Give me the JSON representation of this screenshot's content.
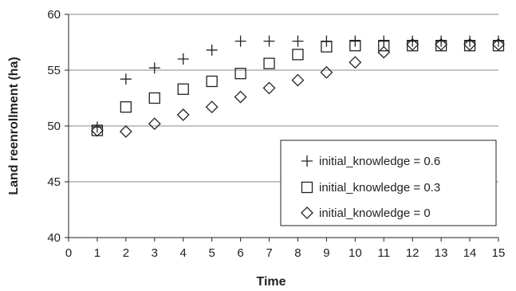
{
  "chart_data": {
    "type": "scatter",
    "xlabel": "Time",
    "ylabel": "Land reenrollment (ha)",
    "xlim": [
      0,
      15
    ],
    "ylim": [
      40,
      60
    ],
    "x_ticks": [
      "0",
      "1",
      "2",
      "3",
      "4",
      "5",
      "6",
      "7",
      "8",
      "9",
      "10",
      "11",
      "12",
      "13",
      "14",
      "15"
    ],
    "y_ticks": [
      "40",
      "45",
      "50",
      "55",
      "60"
    ],
    "grid": "horizontal",
    "legend_position": "bottom-right",
    "series": [
      {
        "name": "initial_knowledge = 0.6",
        "marker": "plus",
        "x": [
          1,
          2,
          3,
          4,
          5,
          6,
          7,
          8,
          9,
          10,
          11,
          12,
          13,
          14,
          15
        ],
        "y": [
          49.9,
          54.2,
          55.2,
          56.0,
          56.8,
          57.6,
          57.6,
          57.6,
          57.6,
          57.6,
          57.6,
          57.6,
          57.6,
          57.6,
          57.6
        ]
      },
      {
        "name": "initial_knowledge = 0.3",
        "marker": "square",
        "x": [
          1,
          2,
          3,
          4,
          5,
          6,
          7,
          8,
          9,
          10,
          11,
          12,
          13,
          14,
          15
        ],
        "y": [
          49.6,
          51.7,
          52.5,
          53.3,
          54.0,
          54.7,
          55.6,
          56.4,
          57.1,
          57.2,
          57.2,
          57.2,
          57.2,
          57.2,
          57.2
        ]
      },
      {
        "name": "initial_knowledge = 0",
        "marker": "diamond",
        "x": [
          1,
          2,
          3,
          4,
          5,
          6,
          7,
          8,
          9,
          10,
          11,
          12,
          13,
          14,
          15
        ],
        "y": [
          49.6,
          49.5,
          50.2,
          51.0,
          51.7,
          52.6,
          53.4,
          54.1,
          54.8,
          55.7,
          56.6,
          57.3,
          57.3,
          57.3,
          57.3
        ]
      }
    ]
  }
}
